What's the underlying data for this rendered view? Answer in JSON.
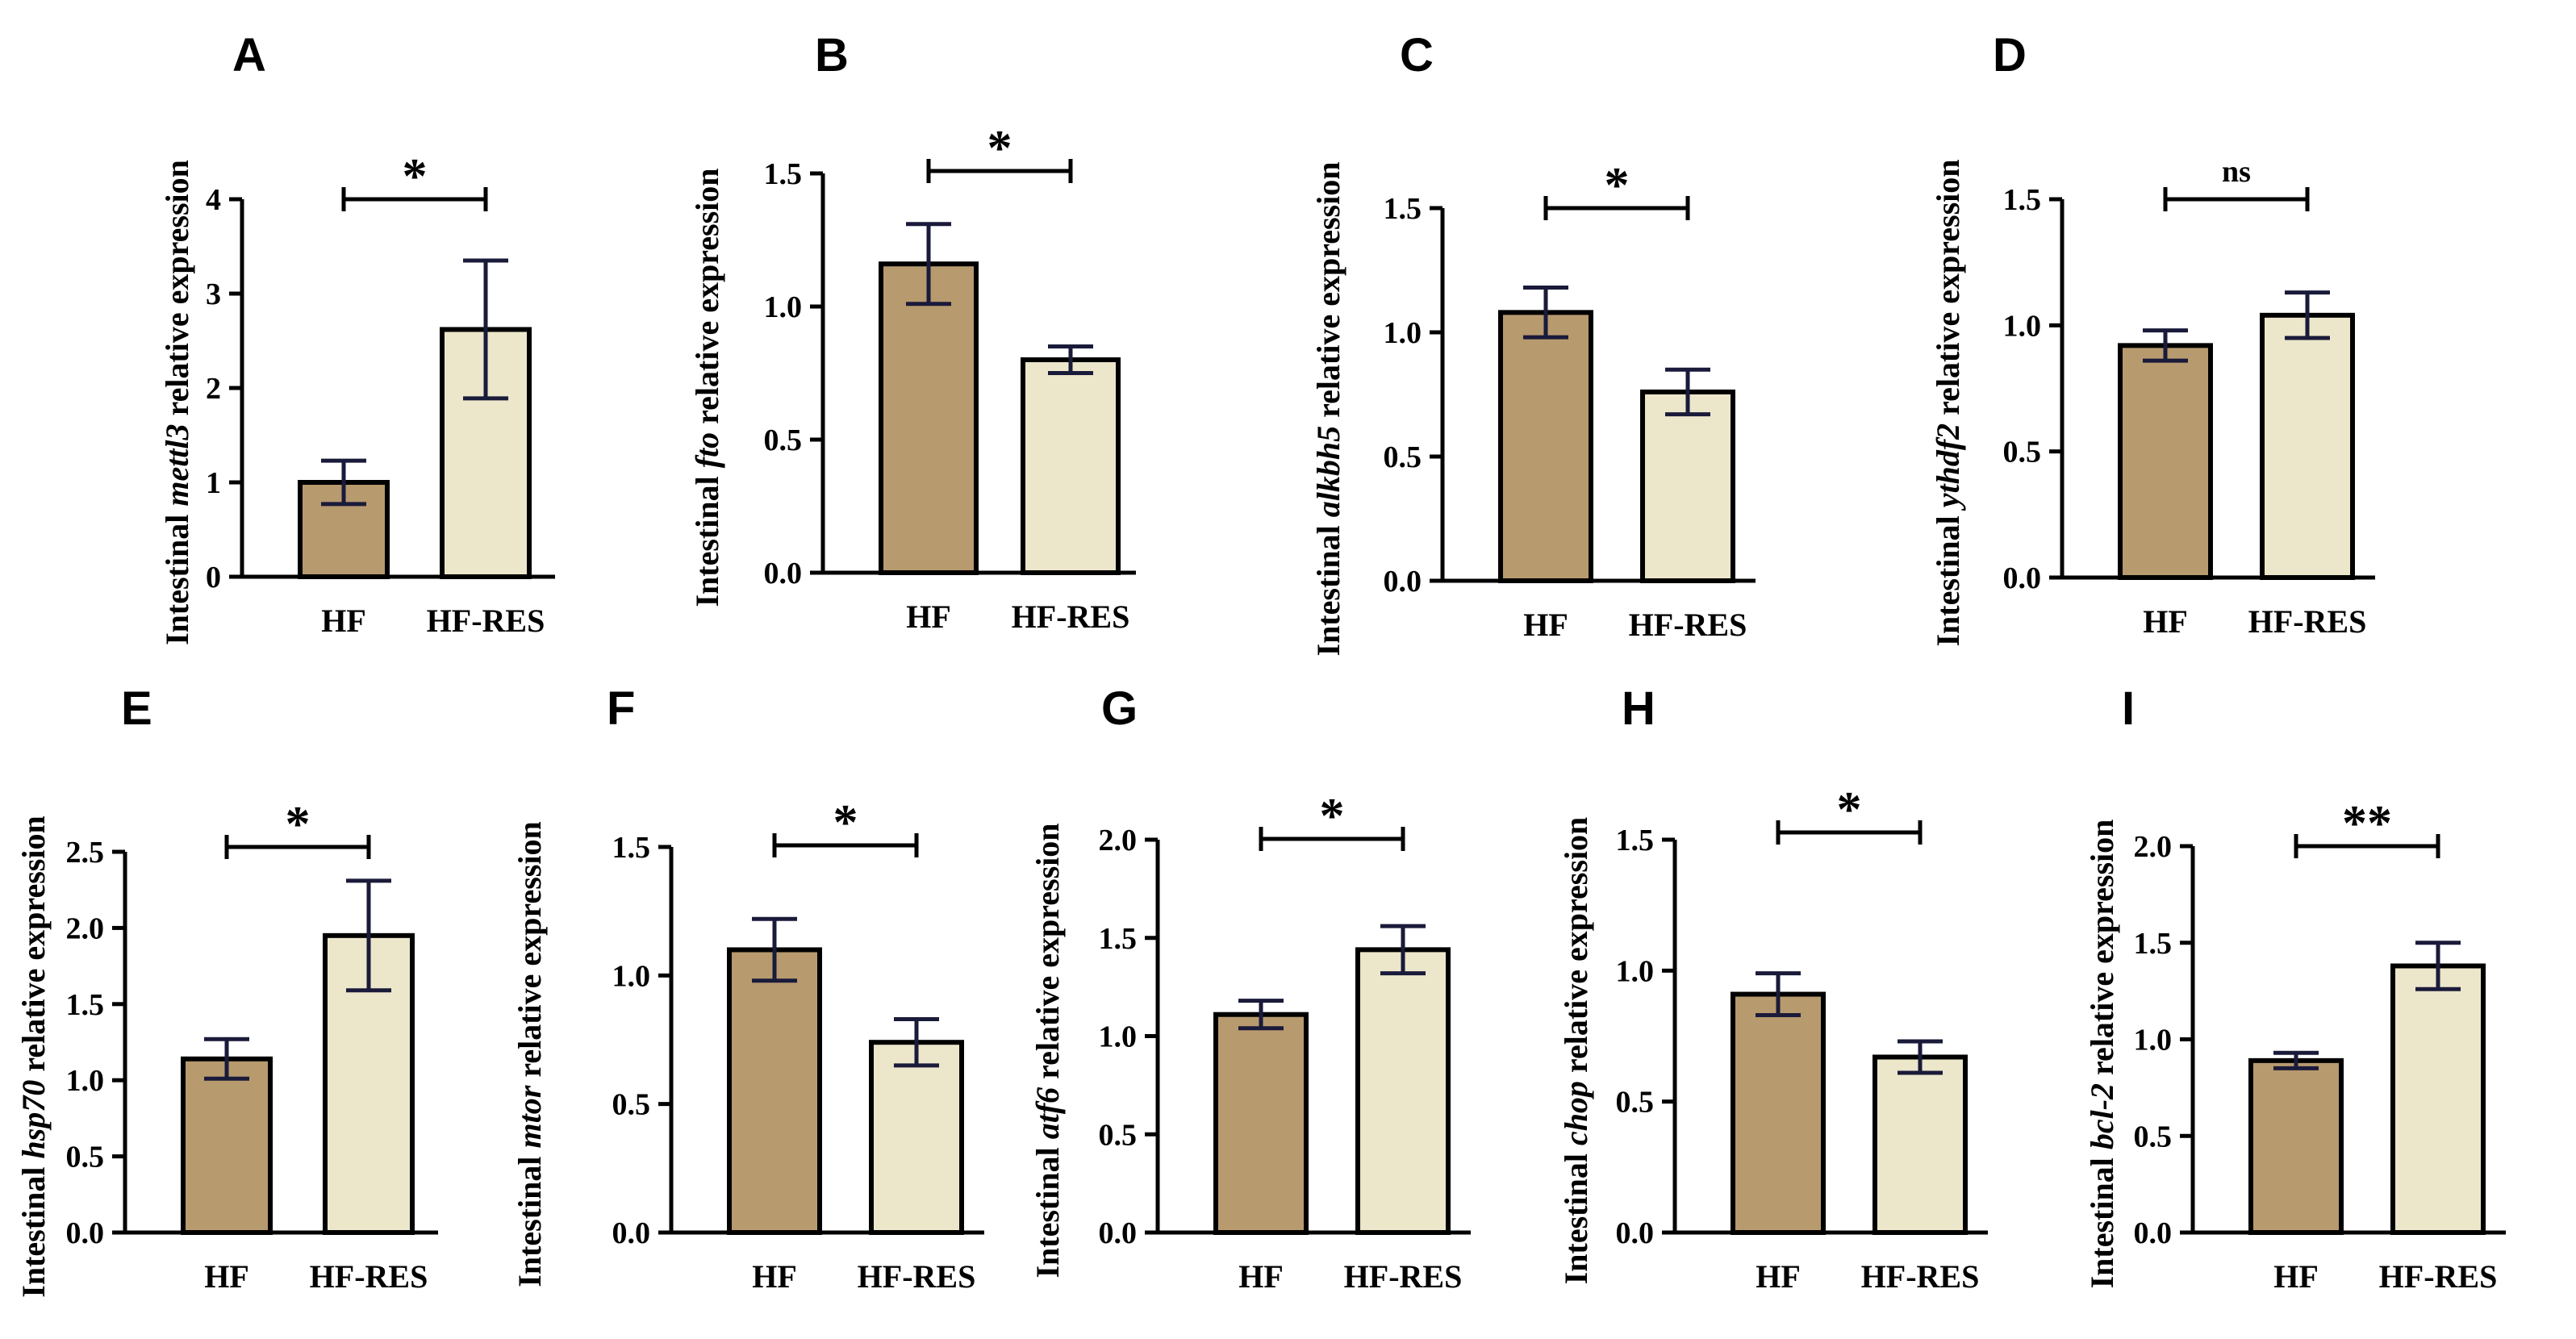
{
  "colors": {
    "hf": "#B79A6E",
    "hf_res": "#ECE6CB",
    "stroke": "#000000",
    "errorbar": "#1a1a3a"
  },
  "chart_data": [
    {
      "type": "bar",
      "letter": "A",
      "gene": "mettl3",
      "label_prefix": "Intestinal",
      "label_suffix": "relative expression",
      "categories": [
        "HF",
        "HF-RES"
      ],
      "values": [
        1.0,
        2.62
      ],
      "errors": [
        0.23,
        0.73
      ],
      "ylim": [
        0,
        4
      ],
      "ticks": [
        "0",
        "1",
        "2",
        "3",
        "4"
      ],
      "tick_values": [
        0,
        1,
        2,
        3,
        4
      ],
      "significance": "*"
    },
    {
      "type": "bar",
      "letter": "B",
      "gene": "fto",
      "label_prefix": "Intestinal",
      "label_suffix": "relative expression",
      "categories": [
        "HF",
        "HF-RES"
      ],
      "values": [
        1.16,
        0.8
      ],
      "errors": [
        0.15,
        0.05
      ],
      "ylim": [
        0,
        1.5
      ],
      "ticks": [
        "0.0",
        "0.5",
        "1.0",
        "1.5"
      ],
      "tick_values": [
        0,
        0.5,
        1.0,
        1.5
      ],
      "significance": "*"
    },
    {
      "type": "bar",
      "letter": "C",
      "gene": "alkbh5",
      "label_prefix": "Intestinal",
      "label_suffix": "relative expression",
      "categories": [
        "HF",
        "HF-RES"
      ],
      "values": [
        1.08,
        0.76
      ],
      "errors": [
        0.1,
        0.09
      ],
      "ylim": [
        0,
        1.5
      ],
      "ticks": [
        "0.0",
        "0.5",
        "1.0",
        "1.5"
      ],
      "tick_values": [
        0,
        0.5,
        1.0,
        1.5
      ],
      "significance": "*"
    },
    {
      "type": "bar",
      "letter": "D",
      "gene": "ythdf2",
      "label_prefix": "Intestinal",
      "label_suffix": "relative expression",
      "categories": [
        "HF",
        "HF-RES"
      ],
      "values": [
        0.92,
        1.04
      ],
      "errors": [
        0.06,
        0.09
      ],
      "ylim": [
        0,
        1.5
      ],
      "ticks": [
        "0.0",
        "0.5",
        "1.0",
        "1.5"
      ],
      "tick_values": [
        0,
        0.5,
        1.0,
        1.5
      ],
      "significance": "ns"
    },
    {
      "type": "bar",
      "letter": "E",
      "gene": "hsp70",
      "label_prefix": "Intestinal",
      "label_suffix": "relative expression",
      "categories": [
        "HF",
        "HF-RES"
      ],
      "values": [
        1.14,
        1.95
      ],
      "errors": [
        0.13,
        0.36
      ],
      "ylim": [
        0,
        2.5
      ],
      "ticks": [
        "0.0",
        "0.5",
        "1.0",
        "1.5",
        "2.0",
        "2.5"
      ],
      "tick_values": [
        0,
        0.5,
        1.0,
        1.5,
        2.0,
        2.5
      ],
      "significance": "*"
    },
    {
      "type": "bar",
      "letter": "F",
      "gene": "mtor",
      "label_prefix": "Intestinal",
      "label_suffix": "relative expression",
      "categories": [
        "HF",
        "HF-RES"
      ],
      "values": [
        1.1,
        0.74
      ],
      "errors": [
        0.12,
        0.09
      ],
      "ylim": [
        0,
        1.5
      ],
      "ticks": [
        "0.0",
        "0.5",
        "1.0",
        "1.5"
      ],
      "tick_values": [
        0,
        0.5,
        1.0,
        1.5
      ],
      "significance": "*"
    },
    {
      "type": "bar",
      "letter": "G",
      "gene": "atf6",
      "label_prefix": "Intestinal",
      "label_suffix": "relative expression",
      "categories": [
        "HF",
        "HF-RES"
      ],
      "values": [
        1.11,
        1.44
      ],
      "errors": [
        0.07,
        0.12
      ],
      "ylim": [
        0,
        2.0
      ],
      "ticks": [
        "0.0",
        "0.5",
        "1.0",
        "1.5",
        "2.0"
      ],
      "tick_values": [
        0,
        0.5,
        1.0,
        1.5,
        2.0
      ],
      "significance": "*"
    },
    {
      "type": "bar",
      "letter": "H",
      "gene": "chop",
      "label_prefix": "Intestinal",
      "label_suffix": "relative expression",
      "categories": [
        "HF",
        "HF-RES"
      ],
      "values": [
        0.91,
        0.67
      ],
      "errors": [
        0.08,
        0.06
      ],
      "ylim": [
        0,
        1.5
      ],
      "ticks": [
        "0.0",
        "0.5",
        "1.0",
        "1.5"
      ],
      "tick_values": [
        0,
        0.5,
        1.0,
        1.5
      ],
      "significance": "*"
    },
    {
      "type": "bar",
      "letter": "I",
      "gene": "bcl-2",
      "label_prefix": "Intestinal",
      "label_suffix": "relative expression",
      "categories": [
        "HF",
        "HF-RES"
      ],
      "values": [
        0.89,
        1.38
      ],
      "errors": [
        0.04,
        0.12
      ],
      "ylim": [
        0,
        2.0
      ],
      "ticks": [
        "0.0",
        "0.5",
        "1.0",
        "1.5",
        "2.0"
      ],
      "tick_values": [
        0,
        0.5,
        1.0,
        1.5,
        2.0
      ],
      "significance": "**"
    }
  ]
}
